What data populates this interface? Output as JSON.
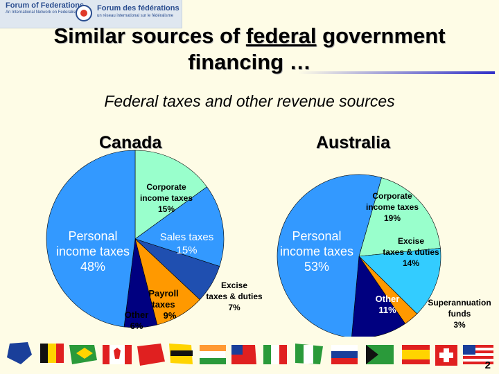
{
  "header": {
    "logo_en": "Forum of Federations",
    "logo_en_sub": "An International Network on Federalism",
    "logo_fr": "Forum des fédérations",
    "logo_fr_sub": "un réseau international sur le fédéralisme"
  },
  "title": {
    "pre": "Similar sources of ",
    "underlined": "federal",
    "post": " government",
    "line2": "financing …"
  },
  "subtitle": "Federal taxes and other revenue sources",
  "charts": [
    {
      "country": "Canada",
      "slices": [
        {
          "label": "Corporate income taxes",
          "pct": "15%",
          "value": 15,
          "color": "#99ffcc"
        },
        {
          "label": "Sales taxes",
          "pct": "15%",
          "value": 15,
          "color": "#3399ff"
        },
        {
          "label": "Excise taxes & duties",
          "pct": "7%",
          "value": 7,
          "color": "#1f4fb0"
        },
        {
          "label": "Payroll taxes",
          "pct": "9%",
          "value": 9,
          "color": "#ff9900"
        },
        {
          "label": "Other",
          "pct": "6%",
          "value": 6,
          "color": "#000080"
        },
        {
          "label": "Personal income taxes",
          "pct": "48%",
          "value": 48,
          "color": "#3399ff"
        }
      ]
    },
    {
      "country": "Australia",
      "slices": [
        {
          "label": "Corporate income taxes",
          "pct": "19%",
          "value": 19,
          "color": "#99ffcc"
        },
        {
          "label": "Excise taxes & duties",
          "pct": "14%",
          "value": 14,
          "color": "#33ccff"
        },
        {
          "label": "Superannuation funds",
          "pct": "3%",
          "value": 3,
          "color": "#ff9900"
        },
        {
          "label": "Other",
          "pct": "11%",
          "value": 11,
          "color": "#000080"
        },
        {
          "label": "Personal income taxes",
          "pct": "53%",
          "value": 53,
          "color": "#3399ff"
        }
      ]
    }
  ],
  "labels": {
    "ca_corp": [
      "Corporate",
      "income taxes",
      "15%"
    ],
    "ca_sales": [
      "Sales taxes",
      "15%"
    ],
    "ca_personal": [
      "Personal",
      "income taxes",
      "48%"
    ],
    "ca_payroll": [
      "Payroll",
      "taxes",
      "9%"
    ],
    "ca_other": [
      "Other",
      "6%"
    ],
    "ca_excise": [
      "Excise",
      "taxes & duties",
      "7%"
    ],
    "au_corp": [
      "Corporate",
      "income taxes",
      "19%"
    ],
    "au_excise": [
      "Excise",
      "taxes & duties",
      "14%"
    ],
    "au_personal": [
      "Personal",
      "income taxes",
      "53%"
    ],
    "au_other": [
      "Other",
      "11%"
    ],
    "au_super": [
      "Superannuation",
      "funds",
      "3%"
    ]
  },
  "page_number": "2"
}
